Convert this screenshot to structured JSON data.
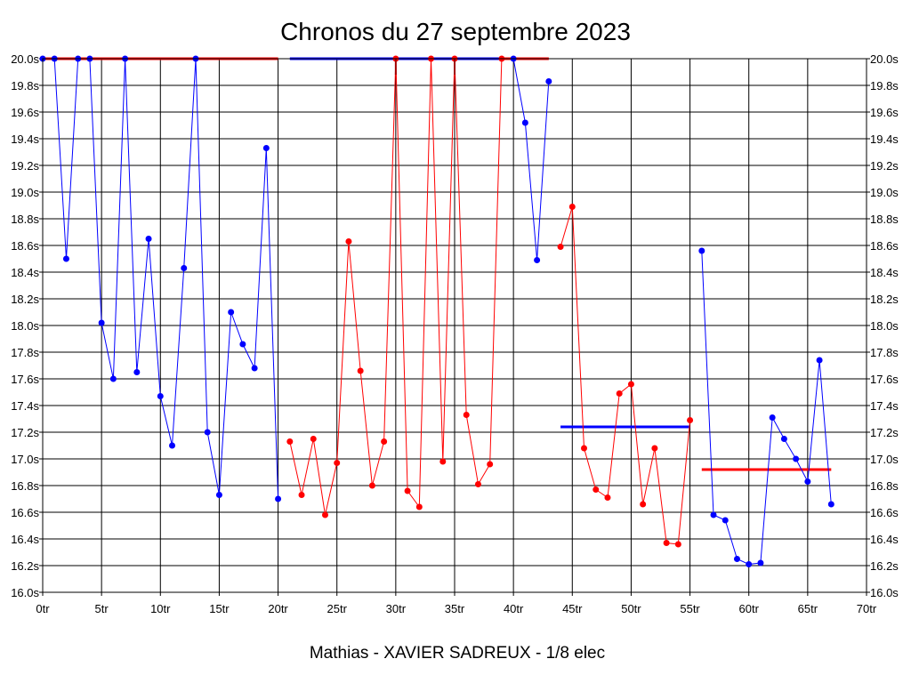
{
  "chart_data": {
    "type": "line",
    "title": "Chronos du 27 septembre 2023",
    "xlabel": "Mathias - XAVIER SADREUX - 1/8 elec",
    "ylabel": "",
    "xlim": [
      0,
      70
    ],
    "ylim": [
      16.0,
      20.0
    ],
    "grid": true,
    "y_axes": "left and right",
    "x_ticks": [
      "0tr",
      "5tr",
      "10tr",
      "15tr",
      "20tr",
      "25tr",
      "30tr",
      "35tr",
      "40tr",
      "45tr",
      "50tr",
      "55tr",
      "60tr",
      "65tr",
      "70tr"
    ],
    "y_ticks": [
      "16.0s",
      "16.2s",
      "16.4s",
      "16.6s",
      "16.8s",
      "17.0s",
      "17.2s",
      "17.4s",
      "17.6s",
      "17.8s",
      "18.0s",
      "18.2s",
      "18.4s",
      "18.6s",
      "18.8s",
      "19.0s",
      "19.2s",
      "19.4s",
      "19.6s",
      "19.8s",
      "20.0s"
    ],
    "series": [
      {
        "color": "#0000ff",
        "x": [
          0,
          1,
          2,
          3,
          4,
          5,
          6,
          7,
          8,
          9,
          10,
          11,
          12,
          13,
          14,
          15,
          16,
          17,
          18,
          19,
          20
        ],
        "y": [
          20.0,
          20.0,
          18.5,
          20.0,
          20.0,
          18.02,
          17.6,
          20.0,
          17.65,
          18.65,
          17.47,
          17.1,
          18.43,
          20.0,
          17.2,
          16.73,
          18.1,
          17.86,
          17.68,
          19.33,
          16.7
        ]
      },
      {
        "color": "#ff0000",
        "x": [
          21,
          22,
          23,
          24,
          25,
          26,
          27,
          28,
          29,
          30,
          31,
          32,
          33,
          34,
          35,
          36,
          37,
          38,
          39
        ],
        "y": [
          17.13,
          16.73,
          17.15,
          16.58,
          16.97,
          18.63,
          17.66,
          16.8,
          17.13,
          20.0,
          16.76,
          16.64,
          20.0,
          16.98,
          20.0,
          17.33,
          16.81,
          16.96,
          20.0
        ]
      },
      {
        "color": "#0000ff",
        "x": [
          40,
          41,
          42,
          43
        ],
        "y": [
          20.0,
          19.52,
          18.49,
          19.83
        ]
      },
      {
        "color": "#ff0000",
        "x": [
          44,
          45,
          46,
          47,
          48,
          49,
          50,
          51,
          52,
          53,
          54,
          55
        ],
        "y": [
          18.59,
          18.89,
          17.08,
          16.77,
          16.71,
          17.49,
          17.56,
          16.66,
          17.08,
          16.37,
          16.36,
          17.29
        ]
      },
      {
        "color": "#0000ff",
        "x": [
          56,
          57,
          58,
          59,
          60,
          61,
          62,
          63,
          64,
          65,
          66,
          67
        ],
        "y": [
          18.56,
          16.58,
          16.54,
          16.25,
          16.21,
          16.22,
          17.31,
          17.15,
          17.0,
          16.83,
          17.74,
          16.66
        ]
      }
    ],
    "spikes": [
      {
        "color": "#a00000",
        "x": 30,
        "y0": 19.88,
        "y1": 20.0
      },
      {
        "color": "#a00000",
        "x": 35,
        "y0": 19.88,
        "y1": 20.0
      }
    ],
    "reference_lines": [
      {
        "color": "#ff0000",
        "x0": 0,
        "x1": 20,
        "y": 20.0
      },
      {
        "color": "#0000ff",
        "x0": 21,
        "x1": 39,
        "y": 20.0
      },
      {
        "color": "#ff0000",
        "x0": 39,
        "x1": 43,
        "y": 20.0
      },
      {
        "color": "#0000ff",
        "x0": 44,
        "x1": 55,
        "y": 17.24
      },
      {
        "color": "#ff0000",
        "x0": 56,
        "x1": 67,
        "y": 16.92
      }
    ]
  }
}
